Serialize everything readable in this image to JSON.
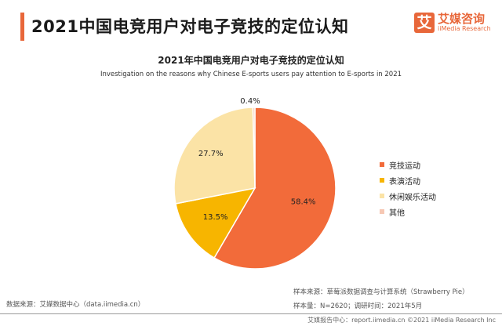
{
  "header": {
    "title": "2021中国电竞用户对电子竞技的定位认知",
    "logo_cn": "艾媒咨询",
    "logo_en": "iiMedia Research",
    "logo_mark": "艾"
  },
  "chart_data": {
    "type": "pie",
    "title": "2021年中国电竞用户对电子竞技的定位认知",
    "subtitle": "Investigation on the reasons why Chinese E-sports users pay attention to E-sports in 2021",
    "slices": [
      {
        "name": "竞技运动",
        "value": 58.4,
        "label": "58.4%",
        "color": "#f26b3a"
      },
      {
        "name": "表演活动",
        "value": 13.5,
        "label": "13.5%",
        "color": "#f7b500"
      },
      {
        "name": "休闲娱乐活动",
        "value": 27.7,
        "label": "27.7%",
        "color": "#fbe3a6"
      },
      {
        "name": "其他",
        "value": 0.4,
        "label": "0.4%",
        "color": "#f6c8b4"
      }
    ],
    "legend_position": "right"
  },
  "footer": {
    "source": "数据来源：艾媒数据中心（data.iimedia.cn）",
    "sample_source": "样本来源：草莓派数据调查与计算系统（Strawberry Pie）",
    "sample_size": "样本量：N=2620；调研时间：2021年5月",
    "copyright": "艾媒报告中心：report.iimedia.cn ©2021  iiMedia Research  Inc"
  }
}
